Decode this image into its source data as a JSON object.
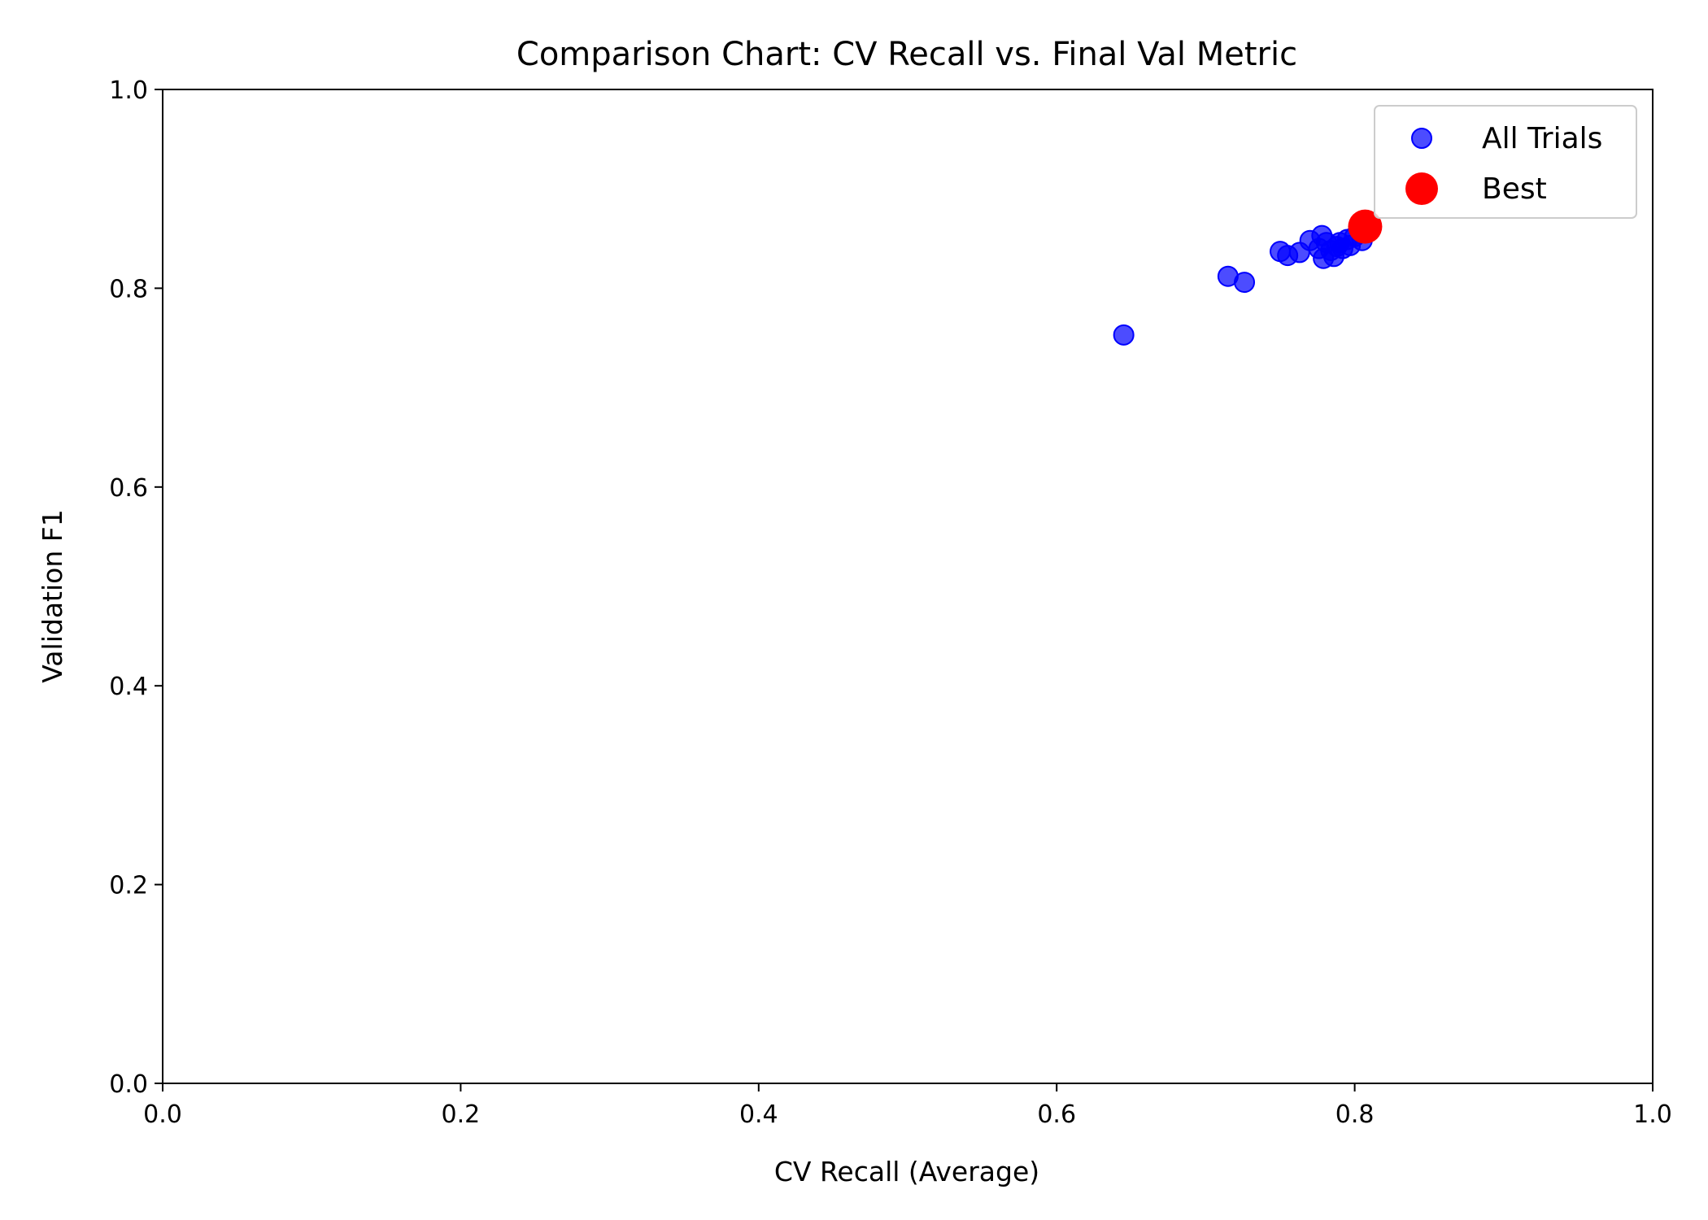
{
  "chart_data": {
    "type": "scatter",
    "title": "Comparison Chart: CV Recall vs. Final Val Metric",
    "xlabel": "CV Recall (Average)",
    "ylabel": "Validation F1",
    "xlim": [
      0.0,
      1.0
    ],
    "ylim": [
      0.0,
      1.0
    ],
    "xticks": [
      "0.0",
      "0.2",
      "0.4",
      "0.6",
      "0.8",
      "1.0"
    ],
    "yticks": [
      "0.0",
      "0.2",
      "0.4",
      "0.6",
      "0.8",
      "1.0"
    ],
    "grid": false,
    "legend_position": "upper right",
    "series": [
      {
        "name": "All Trials",
        "color": "#0000ff",
        "opacity": 0.7,
        "points": [
          {
            "x": 0.645,
            "y": 0.753
          },
          {
            "x": 0.715,
            "y": 0.812
          },
          {
            "x": 0.726,
            "y": 0.806
          },
          {
            "x": 0.75,
            "y": 0.837
          },
          {
            "x": 0.755,
            "y": 0.833
          },
          {
            "x": 0.763,
            "y": 0.836
          },
          {
            "x": 0.77,
            "y": 0.848
          },
          {
            "x": 0.776,
            "y": 0.84
          },
          {
            "x": 0.778,
            "y": 0.853
          },
          {
            "x": 0.779,
            "y": 0.83
          },
          {
            "x": 0.781,
            "y": 0.846
          },
          {
            "x": 0.784,
            "y": 0.838
          },
          {
            "x": 0.786,
            "y": 0.832
          },
          {
            "x": 0.788,
            "y": 0.842
          },
          {
            "x": 0.79,
            "y": 0.846
          },
          {
            "x": 0.792,
            "y": 0.84
          },
          {
            "x": 0.795,
            "y": 0.849
          },
          {
            "x": 0.797,
            "y": 0.843
          },
          {
            "x": 0.8,
            "y": 0.852
          },
          {
            "x": 0.805,
            "y": 0.848
          },
          {
            "x": 0.806,
            "y": 0.857
          }
        ]
      },
      {
        "name": "Best",
        "color": "#ff0000",
        "opacity": 1.0,
        "points": [
          {
            "x": 0.807,
            "y": 0.862
          }
        ]
      }
    ]
  }
}
